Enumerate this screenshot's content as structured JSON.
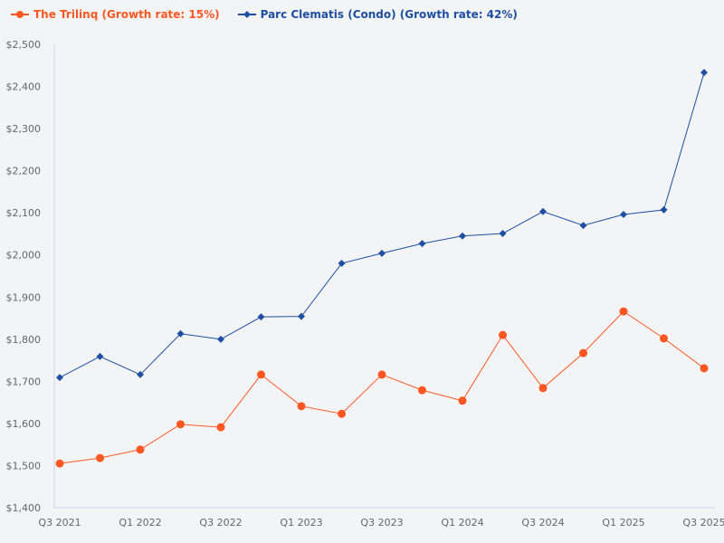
{
  "chart_data": {
    "type": "line",
    "title": "",
    "xlabel": "",
    "ylabel": "",
    "ylim": [
      1400,
      2500
    ],
    "yticks": [
      "$1,400",
      "$1,500",
      "$1,600",
      "$1,700",
      "$1,800",
      "$1,900",
      "$2,000",
      "$2,100",
      "$2,200",
      "$2,300",
      "$2,400",
      "$2,500"
    ],
    "x": [
      "Q3 2021",
      "Q4 2021",
      "Q1 2022",
      "Q2 2022",
      "Q3 2022",
      "Q4 2022",
      "Q1 2023",
      "Q2 2023",
      "Q3 2023",
      "Q4 2023",
      "Q1 2024",
      "Q2 2024",
      "Q3 2024",
      "Q4 2024",
      "Q1 2025",
      "Q2 2025",
      "Q3 2025"
    ],
    "xtick_labels": [
      "Q3 2021",
      "Q1 2022",
      "Q3 2022",
      "Q1 2023",
      "Q3 2023",
      "Q1 2024",
      "Q3 2024",
      "Q1 2025",
      "Q3 2025"
    ],
    "grid": false,
    "legend_position": "top-left",
    "series": [
      {
        "name": "The Trilinq (Growth rate: 15%)",
        "color": "#ff5722",
        "marker": "circle",
        "values": [
          1505,
          1518,
          1538,
          1598,
          1591,
          1716,
          1641,
          1623,
          1716,
          1679,
          1654,
          1810,
          1684,
          1767,
          1866,
          1802,
          1731
        ]
      },
      {
        "name": "Parc Clematis (Condo) (Growth rate: 42%)",
        "color": "#1e4fa3",
        "marker": "diamond",
        "values": [
          1709,
          1759,
          1716,
          1813,
          1800,
          1853,
          1854,
          1980,
          2004,
          2027,
          2045,
          2051,
          2103,
          2070,
          2096,
          2107,
          2433
        ]
      }
    ]
  }
}
